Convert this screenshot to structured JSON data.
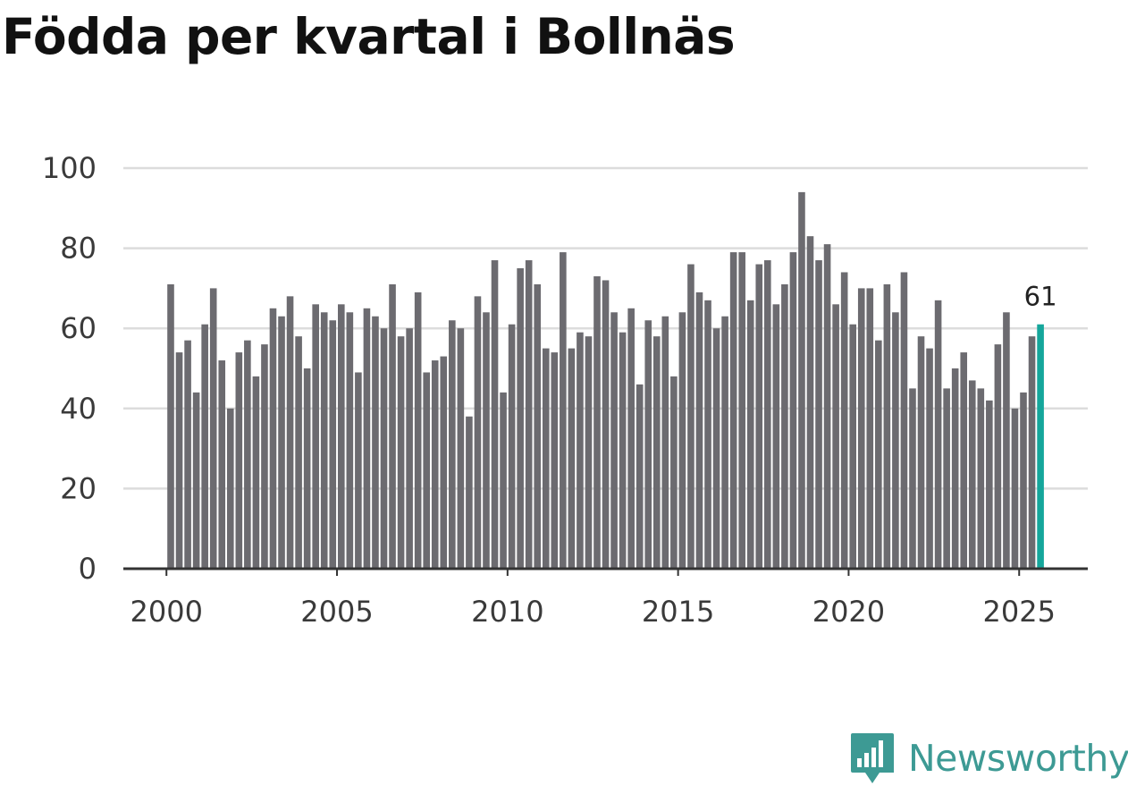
{
  "title": "Födda per kvartal i Bollnäs",
  "brand": {
    "name": "Newsworthy",
    "color": "#3d9a94"
  },
  "colors": {
    "bar": "#6c6b70",
    "highlight": "#15a69b"
  },
  "chart_data": {
    "type": "bar",
    "title": "Födda per kvartal i Bollnäs",
    "xlabel": "",
    "ylabel": "",
    "ylim": [
      0,
      100
    ],
    "yticks": [
      0,
      20,
      40,
      60,
      80,
      100
    ],
    "xticks": [
      {
        "year": 2000,
        "label": "2000"
      },
      {
        "year": 2005,
        "label": "2005"
      },
      {
        "year": 2010,
        "label": "2010"
      },
      {
        "year": 2015,
        "label": "2015"
      },
      {
        "year": 2020,
        "label": "2020"
      },
      {
        "year": 2025,
        "label": "2025"
      }
    ],
    "start_year": 2000,
    "start_quarter": 1,
    "grid": true,
    "highlight_last": true,
    "last_label": "61",
    "values": [
      71,
      54,
      57,
      44,
      61,
      70,
      52,
      40,
      54,
      57,
      48,
      56,
      65,
      63,
      68,
      58,
      50,
      66,
      64,
      62,
      66,
      64,
      49,
      65,
      63,
      60,
      71,
      58,
      60,
      69,
      49,
      52,
      53,
      62,
      60,
      38,
      68,
      64,
      77,
      44,
      61,
      75,
      77,
      71,
      55,
      54,
      79,
      55,
      59,
      58,
      73,
      72,
      64,
      59,
      65,
      46,
      62,
      58,
      63,
      48,
      64,
      76,
      69,
      67,
      60,
      63,
      79,
      79,
      67,
      76,
      77,
      66,
      71,
      79,
      94,
      83,
      77,
      81,
      66,
      74,
      61,
      70,
      70,
      57,
      71,
      64,
      74,
      45,
      58,
      55,
      67,
      45,
      50,
      54,
      47,
      45,
      42,
      56,
      64,
      40,
      44,
      58,
      61
    ]
  }
}
